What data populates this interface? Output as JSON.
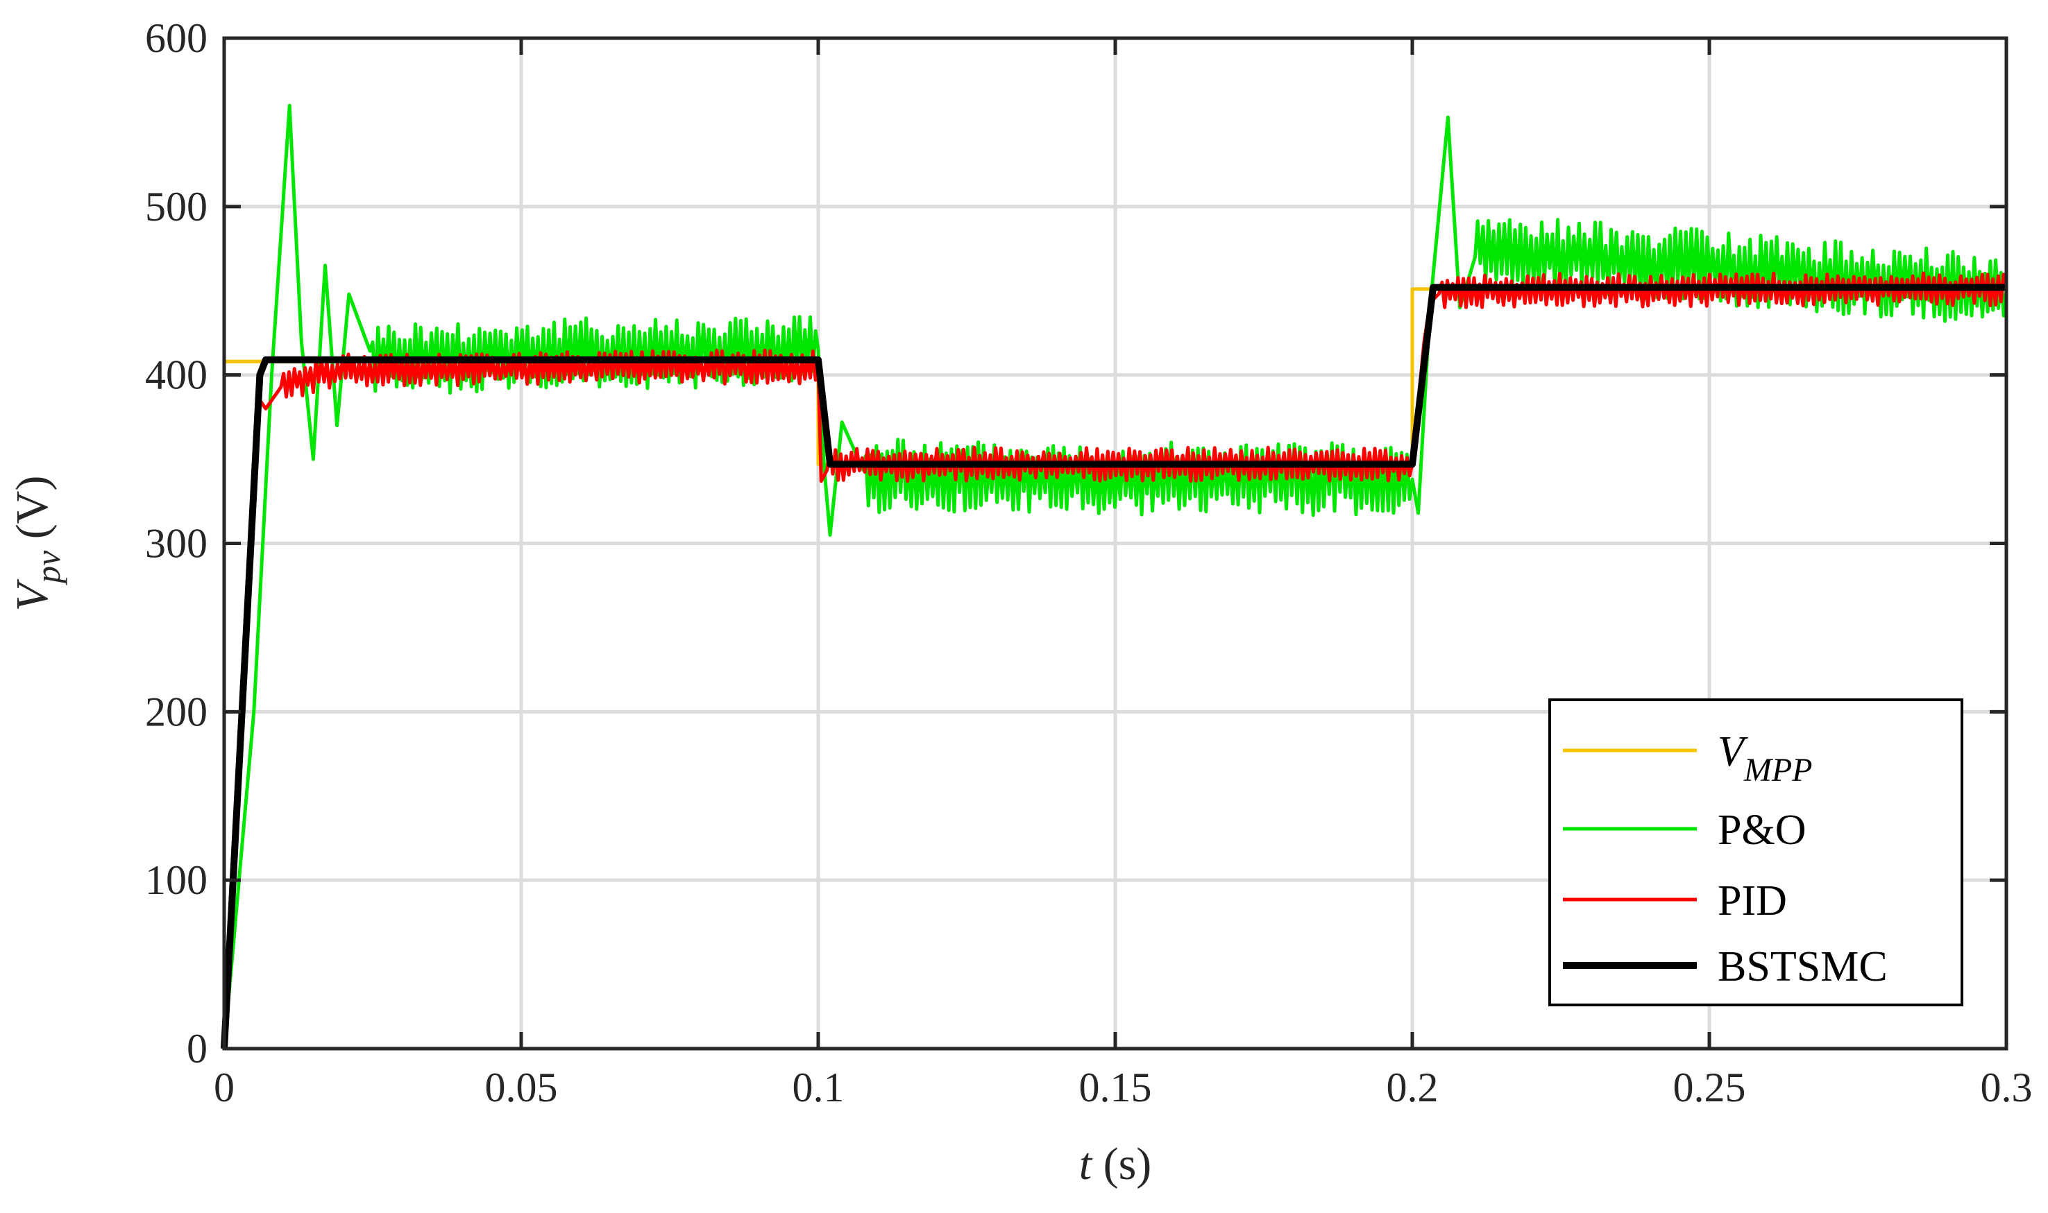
{
  "chart_data": {
    "type": "line",
    "xlabel": {
      "italic": "t",
      "plain": " (s)"
    },
    "ylabel": {
      "italic": "V",
      "subscript": "pv",
      "plain": " (V)"
    },
    "xlim": [
      0,
      0.3
    ],
    "ylim": [
      0,
      600
    ],
    "xticks": [
      0,
      0.05,
      0.1,
      0.15,
      0.2,
      0.25,
      0.3
    ],
    "xtick_labels": [
      "0",
      "0.05",
      "0.1",
      "0.15",
      "0.2",
      "0.25",
      "0.3"
    ],
    "yticks": [
      0,
      100,
      200,
      300,
      400,
      500,
      600
    ],
    "ytick_labels": [
      "0",
      "100",
      "200",
      "300",
      "400",
      "500",
      "600"
    ],
    "grid": true,
    "legend_position": "bottom-right",
    "series": [
      {
        "name": "V_MPP",
        "legend_main": "V",
        "legend_sub": "MPP",
        "color": "#F5C400",
        "width": 5,
        "x": [
          0,
          0.0055,
          0.0055,
          0.1,
          0.1,
          0.2,
          0.2,
          0.3
        ],
        "y": [
          408,
          408,
          408,
          408,
          347,
          347,
          451,
          451
        ]
      },
      {
        "name": "P&O",
        "legend_main": "P&O",
        "color": "#00E600",
        "width": 5,
        "x": [
          0,
          0.005,
          0.008,
          0.011,
          0.013,
          0.015,
          0.017,
          0.019,
          0.021,
          0.025,
          0.1,
          0.101,
          0.102,
          0.104,
          0.108,
          0.2,
          0.201,
          0.203,
          0.206,
          0.208,
          0.211,
          0.3
        ],
        "y": [
          0,
          200,
          400,
          560,
          420,
          350,
          465,
          370,
          448,
          410,
          415,
          345,
          305,
          372,
          340,
          338,
          318,
          440,
          553,
          440,
          475,
          450
        ],
        "ripple": 22
      },
      {
        "name": "PID",
        "legend_main": "PID",
        "color": "#FF0000",
        "width": 5,
        "x": [
          0,
          0.006,
          0.007,
          0.01,
          0.02,
          0.1,
          0.1005,
          0.102,
          0.2,
          0.202,
          0.203,
          0.205,
          0.3
        ],
        "y": [
          0,
          385,
          380,
          395,
          403,
          405,
          337,
          347,
          347,
          420,
          443,
          450,
          451
        ],
        "ripple": 10
      },
      {
        "name": "BSTSMC",
        "legend_main": "BSTSMC",
        "color": "#000000",
        "width": 10,
        "x": [
          0,
          0.006,
          0.007,
          0.1,
          0.102,
          0.2,
          0.2035,
          0.3
        ],
        "y": [
          0,
          400,
          409,
          409,
          347,
          347,
          452,
          452
        ]
      }
    ]
  }
}
